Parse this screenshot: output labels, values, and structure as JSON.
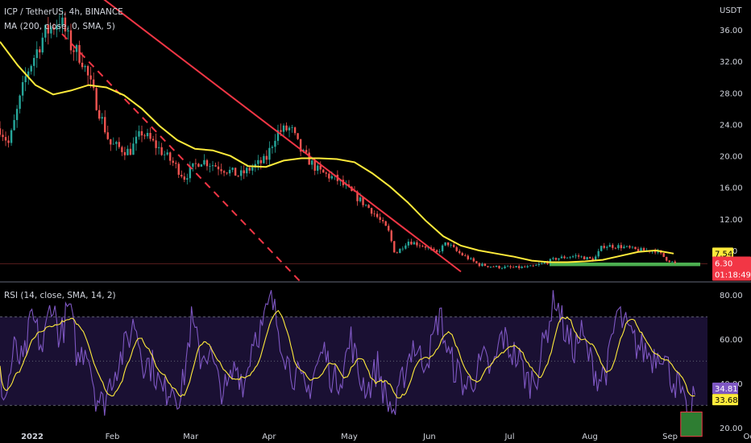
{
  "header": {
    "title": "ICP / TetherUS, 4h, BINANCE",
    "ma_legend": "MA (200, close, 0, SMA, 5)",
    "rsi_legend": "RSI (14, close, SMA, 14, 2)"
  },
  "colors": {
    "background": "#000000",
    "candle_up": "#26a69a",
    "candle_down": "#ef5350",
    "ma_line": "#ffeb3b",
    "trendline": "#f23645",
    "support_zone": "#4caf50",
    "rsi_line": "#7e57c2",
    "rsi_ma": "#ffeb3b",
    "rsi_band": "#1a1033"
  },
  "chart_data": [
    {
      "type": "candlestick",
      "unit": "USDT",
      "y_ticks": [
        "36.00",
        "32.00",
        "28.00",
        "24.00",
        "20.00",
        "16.00",
        "12.00",
        "8.00"
      ],
      "ylim": [
        4.2,
        39.8
      ],
      "x_ticks": [
        "2022",
        "Feb",
        "Mar",
        "Apr",
        "May",
        "Jun",
        "Jul",
        "Aug",
        "Sep",
        "Oct"
      ],
      "price_path": [
        {
          "t": 0.0,
          "v": 23.5
        },
        {
          "t": 0.5,
          "v": 21.5
        },
        {
          "t": 1.0,
          "v": 26.0
        },
        {
          "t": 1.5,
          "v": 30.5
        },
        {
          "t": 2.5,
          "v": 35.5
        },
        {
          "t": 3.4,
          "v": 37.3
        },
        {
          "t": 4.0,
          "v": 34.0
        },
        {
          "t": 4.6,
          "v": 32.5
        },
        {
          "t": 5.4,
          "v": 27.0
        },
        {
          "t": 6.2,
          "v": 21.5
        },
        {
          "t": 7.3,
          "v": 20.5
        },
        {
          "t": 8.0,
          "v": 23.0
        },
        {
          "t": 8.7,
          "v": 21.5
        },
        {
          "t": 9.8,
          "v": 19.0
        },
        {
          "t": 10.4,
          "v": 17.3
        },
        {
          "t": 11.3,
          "v": 19.5
        },
        {
          "t": 12.5,
          "v": 18.5
        },
        {
          "t": 13.5,
          "v": 17.5
        },
        {
          "t": 14.2,
          "v": 18.5
        },
        {
          "t": 15.0,
          "v": 19.5
        },
        {
          "t": 15.6,
          "v": 23.0
        },
        {
          "t": 16.4,
          "v": 23.5
        },
        {
          "t": 17.0,
          "v": 20.5
        },
        {
          "t": 18.0,
          "v": 18.0
        },
        {
          "t": 19.0,
          "v": 17.0
        },
        {
          "t": 20.0,
          "v": 15.0
        },
        {
          "t": 21.0,
          "v": 13.0
        },
        {
          "t": 21.9,
          "v": 10.5
        },
        {
          "t": 22.3,
          "v": 7.5
        },
        {
          "t": 23.0,
          "v": 9.2
        },
        {
          "t": 24.0,
          "v": 8.5
        },
        {
          "t": 24.6,
          "v": 7.6
        },
        {
          "t": 25.2,
          "v": 9.0
        },
        {
          "t": 25.8,
          "v": 7.8
        },
        {
          "t": 27.0,
          "v": 6.2
        },
        {
          "t": 28.0,
          "v": 5.9
        },
        {
          "t": 29.0,
          "v": 5.8
        },
        {
          "t": 30.0,
          "v": 5.9
        },
        {
          "t": 30.6,
          "v": 6.3
        },
        {
          "t": 31.4,
          "v": 7.0
        },
        {
          "t": 32.5,
          "v": 7.3
        },
        {
          "t": 33.5,
          "v": 6.8
        },
        {
          "t": 34.0,
          "v": 8.6
        },
        {
          "t": 35.0,
          "v": 8.5
        },
        {
          "t": 36.0,
          "v": 8.0
        },
        {
          "t": 37.0,
          "v": 8.0
        },
        {
          "t": 37.6,
          "v": 6.9
        },
        {
          "t": 38.1,
          "v": 6.3
        }
      ],
      "ma200_path": [
        {
          "t": 0.0,
          "v": 34.5
        },
        {
          "t": 1.0,
          "v": 31.5
        },
        {
          "t": 2.0,
          "v": 29.0
        },
        {
          "t": 3.0,
          "v": 27.8
        },
        {
          "t": 4.0,
          "v": 28.3
        },
        {
          "t": 5.0,
          "v": 29.0
        },
        {
          "t": 6.0,
          "v": 28.7
        },
        {
          "t": 7.0,
          "v": 27.7
        },
        {
          "t": 8.0,
          "v": 26.0
        },
        {
          "t": 9.0,
          "v": 23.8
        },
        {
          "t": 10.0,
          "v": 22.0
        },
        {
          "t": 11.0,
          "v": 20.9
        },
        {
          "t": 12.0,
          "v": 20.7
        },
        {
          "t": 13.0,
          "v": 20.0
        },
        {
          "t": 14.0,
          "v": 18.7
        },
        {
          "t": 15.0,
          "v": 18.6
        },
        {
          "t": 16.0,
          "v": 19.4
        },
        {
          "t": 17.0,
          "v": 19.7
        },
        {
          "t": 18.0,
          "v": 19.7
        },
        {
          "t": 19.0,
          "v": 19.6
        },
        {
          "t": 20.0,
          "v": 19.2
        },
        {
          "t": 21.0,
          "v": 17.8
        },
        {
          "t": 22.0,
          "v": 16.1
        },
        {
          "t": 23.0,
          "v": 14.1
        },
        {
          "t": 24.0,
          "v": 11.8
        },
        {
          "t": 25.0,
          "v": 9.8
        },
        {
          "t": 26.0,
          "v": 8.6
        },
        {
          "t": 27.0,
          "v": 8.0
        },
        {
          "t": 28.0,
          "v": 7.6
        },
        {
          "t": 29.0,
          "v": 7.2
        },
        {
          "t": 30.0,
          "v": 6.7
        },
        {
          "t": 31.0,
          "v": 6.5
        },
        {
          "t": 32.0,
          "v": 6.5
        },
        {
          "t": 33.0,
          "v": 6.6
        },
        {
          "t": 34.0,
          "v": 6.8
        },
        {
          "t": 35.0,
          "v": 7.3
        },
        {
          "t": 36.0,
          "v": 7.8
        },
        {
          "t": 37.0,
          "v": 8.0
        },
        {
          "t": 38.0,
          "v": 7.6
        }
      ],
      "trendline_solid": {
        "start": {
          "t": 5.5,
          "v": 40.5
        },
        "end": {
          "t": 26.0,
          "v": 5.3
        }
      },
      "trendline_dashed": {
        "start": {
          "t": 3.5,
          "v": 35.5
        },
        "end": {
          "t": 17.0,
          "v": 3.9
        }
      },
      "support_zone": {
        "t_start": 31.0,
        "t_end": 39.5,
        "v_low": 6.0,
        "v_high": 6.45
      },
      "tags": [
        {
          "text": "USDT",
          "kind": "unit"
        },
        {
          "text": "7.54",
          "value": 7.54,
          "kind": "ma"
        },
        {
          "text": "6.30",
          "value": 6.3,
          "kind": "price"
        },
        {
          "text": "01:18:49",
          "kind": "countdown"
        }
      ]
    },
    {
      "type": "line",
      "name": "RSI (14, close, SMA, 14, 2)",
      "y_ticks": [
        "80.00",
        "60.00",
        "40.00",
        "20.00"
      ],
      "ylim": [
        13,
        85
      ],
      "bands": {
        "upper": 70,
        "middle": 50,
        "lower": 30
      },
      "rsi_path": [
        {
          "t": 0.0,
          "v": 42
        },
        {
          "t": 0.3,
          "v": 33
        },
        {
          "t": 0.8,
          "v": 55
        },
        {
          "t": 1.3,
          "v": 48
        },
        {
          "t": 1.8,
          "v": 70
        },
        {
          "t": 2.4,
          "v": 55
        },
        {
          "t": 2.9,
          "v": 78
        },
        {
          "t": 3.4,
          "v": 60
        },
        {
          "t": 3.9,
          "v": 75
        },
        {
          "t": 4.4,
          "v": 50
        },
        {
          "t": 4.9,
          "v": 58
        },
        {
          "t": 5.4,
          "v": 35
        },
        {
          "t": 5.8,
          "v": 30
        },
        {
          "t": 6.4,
          "v": 45
        },
        {
          "t": 7.0,
          "v": 55
        },
        {
          "t": 7.6,
          "v": 68
        },
        {
          "t": 8.1,
          "v": 50
        },
        {
          "t": 8.6,
          "v": 48
        },
        {
          "t": 9.2,
          "v": 35
        },
        {
          "t": 9.7,
          "v": 40
        },
        {
          "t": 10.2,
          "v": 33
        },
        {
          "t": 10.8,
          "v": 68
        },
        {
          "t": 11.3,
          "v": 52
        },
        {
          "t": 11.8,
          "v": 55
        },
        {
          "t": 12.3,
          "v": 40
        },
        {
          "t": 12.8,
          "v": 36
        },
        {
          "t": 13.3,
          "v": 48
        },
        {
          "t": 13.8,
          "v": 40
        },
        {
          "t": 14.3,
          "v": 62
        },
        {
          "t": 14.8,
          "v": 65
        },
        {
          "t": 15.3,
          "v": 78
        },
        {
          "t": 15.8,
          "v": 62
        },
        {
          "t": 16.3,
          "v": 48
        },
        {
          "t": 16.8,
          "v": 42
        },
        {
          "t": 17.3,
          "v": 35
        },
        {
          "t": 17.8,
          "v": 47
        },
        {
          "t": 18.3,
          "v": 55
        },
        {
          "t": 18.8,
          "v": 40
        },
        {
          "t": 19.3,
          "v": 45
        },
        {
          "t": 19.8,
          "v": 60
        },
        {
          "t": 20.3,
          "v": 42
        },
        {
          "t": 20.8,
          "v": 38
        },
        {
          "t": 21.3,
          "v": 48
        },
        {
          "t": 21.8,
          "v": 32
        },
        {
          "t": 22.3,
          "v": 27
        },
        {
          "t": 22.8,
          "v": 45
        },
        {
          "t": 23.3,
          "v": 58
        },
        {
          "t": 23.8,
          "v": 50
        },
        {
          "t": 24.3,
          "v": 55
        },
        {
          "t": 24.8,
          "v": 72
        },
        {
          "t": 25.3,
          "v": 52
        },
        {
          "t": 25.8,
          "v": 45
        },
        {
          "t": 26.3,
          "v": 38
        },
        {
          "t": 26.8,
          "v": 44
        },
        {
          "t": 27.3,
          "v": 50
        },
        {
          "t": 27.8,
          "v": 45
        },
        {
          "t": 28.3,
          "v": 62
        },
        {
          "t": 28.8,
          "v": 55
        },
        {
          "t": 29.3,
          "v": 50
        },
        {
          "t": 29.8,
          "v": 40
        },
        {
          "t": 30.3,
          "v": 45
        },
        {
          "t": 30.8,
          "v": 62
        },
        {
          "t": 31.3,
          "v": 80
        },
        {
          "t": 31.8,
          "v": 65
        },
        {
          "t": 32.3,
          "v": 55
        },
        {
          "t": 32.8,
          "v": 62
        },
        {
          "t": 33.3,
          "v": 50
        },
        {
          "t": 33.8,
          "v": 42
        },
        {
          "t": 34.3,
          "v": 48
        },
        {
          "t": 34.8,
          "v": 72
        },
        {
          "t": 35.3,
          "v": 65
        },
        {
          "t": 35.8,
          "v": 58
        },
        {
          "t": 36.3,
          "v": 55
        },
        {
          "t": 36.8,
          "v": 52
        },
        {
          "t": 37.3,
          "v": 56
        },
        {
          "t": 37.8,
          "v": 44
        },
        {
          "t": 38.3,
          "v": 38
        },
        {
          "t": 38.6,
          "v": 28
        },
        {
          "t": 38.9,
          "v": 23
        },
        {
          "t": 39.2,
          "v": 34.8
        }
      ],
      "rsi_ma_value": 33.68,
      "signal_box": {
        "t_start": 38.4,
        "t_end": 39.6,
        "v_low": 16,
        "v_high": 27
      },
      "tags": [
        {
          "text": "34.81",
          "value": 34.81,
          "kind": "rsi"
        },
        {
          "text": "33.68",
          "value": 33.68,
          "kind": "rsi_ma"
        }
      ]
    }
  ]
}
